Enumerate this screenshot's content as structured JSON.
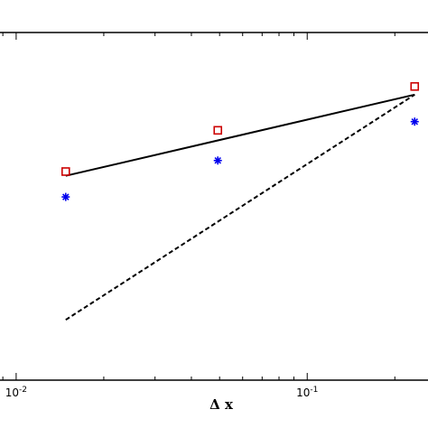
{
  "chart_data": {
    "type": "scatter",
    "x_scale": "log",
    "y_scale": "log",
    "xlabel": "Δ x",
    "ylabel": "",
    "title": "",
    "xlim": [
      0.0088,
      0.26
    ],
    "ylim": [
      0.00069,
      0.098
    ],
    "x_ticks": [
      {
        "value": 0.01,
        "base": "10",
        "exponent": "-2"
      },
      {
        "value": 0.1,
        "base": "10",
        "exponent": "-1"
      }
    ],
    "grid": false,
    "legend": "none",
    "series": [
      {
        "marker": "square",
        "color": "#cc0000",
        "x": [
          0.0148,
          0.0493,
          0.234
        ],
        "y": [
          0.0135,
          0.0243,
          0.0454
        ]
      },
      {
        "marker": "asterisk",
        "color": "#0000ee",
        "x": [
          0.0148,
          0.0493,
          0.234
        ],
        "y": [
          0.0094,
          0.0158,
          0.0275
        ]
      },
      {
        "line": "solid",
        "color": "#000000",
        "x": [
          0.0148,
          0.234
        ],
        "y": [
          0.0127,
          0.0404
        ]
      },
      {
        "line": "dashed",
        "color": "#000000",
        "x": [
          0.0148,
          0.234
        ],
        "y": [
          0.00163,
          0.0404
        ]
      }
    ]
  }
}
